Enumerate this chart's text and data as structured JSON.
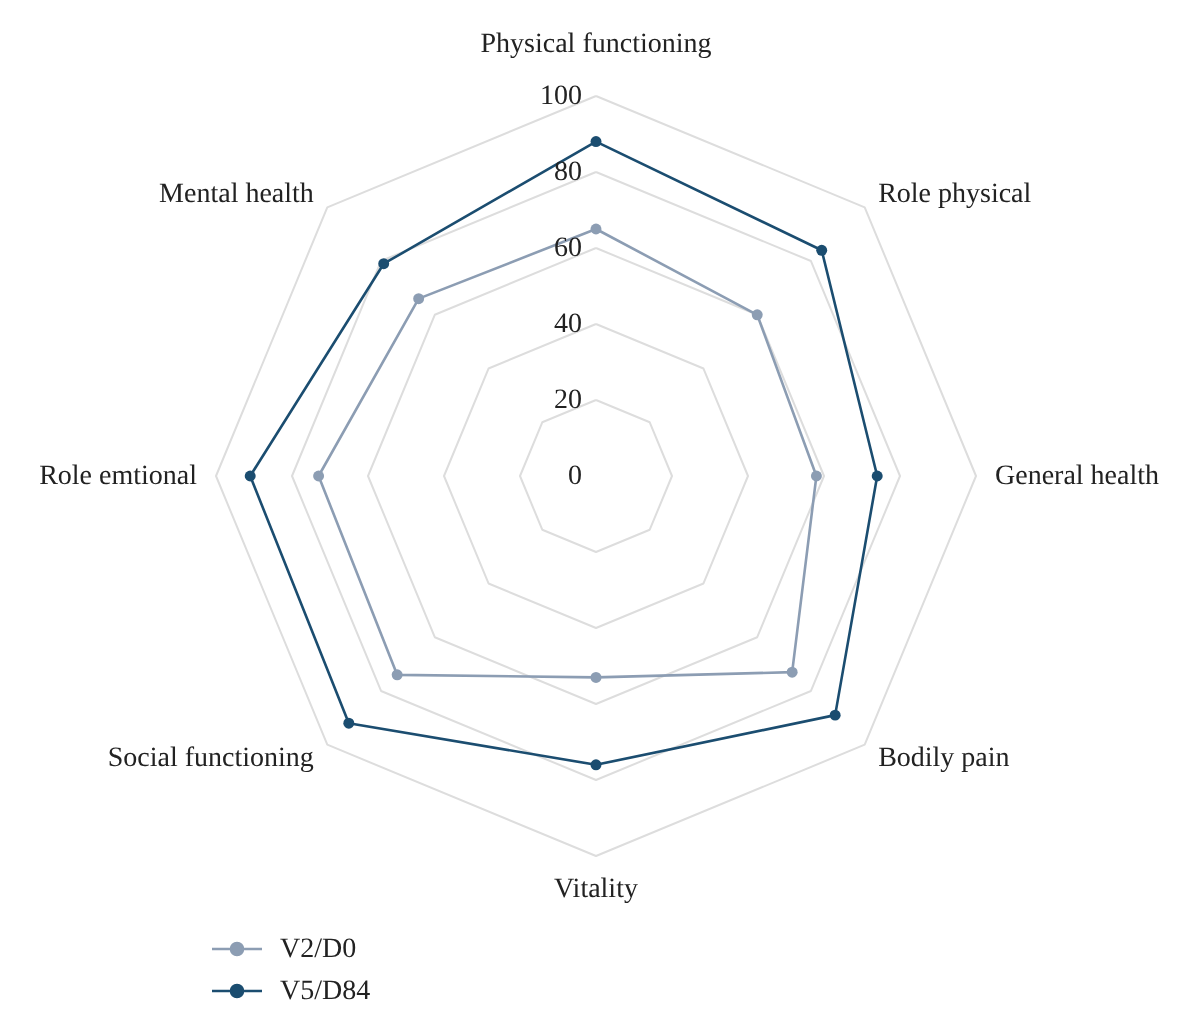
{
  "chart_data": {
    "type": "radar",
    "categories": [
      "Physical functioning",
      "Role physical",
      "General health",
      "Bodily pain",
      "Vitality",
      "Social functioning",
      "Role emtional",
      "Mental health"
    ],
    "series": [
      {
        "name": "V2/D0",
        "color": "#8c9db3",
        "values": [
          65,
          60,
          58,
          73,
          53,
          74,
          73,
          66
        ]
      },
      {
        "name": "V5/D84",
        "color": "#1b4d70",
        "values": [
          88,
          84,
          74,
          89,
          76,
          92,
          91,
          79
        ]
      }
    ],
    "ylim": [
      0,
      100
    ],
    "yticks": [
      0,
      20,
      40,
      60,
      80,
      100
    ],
    "grid": true,
    "legend": "bottom left",
    "marker": "circle"
  }
}
